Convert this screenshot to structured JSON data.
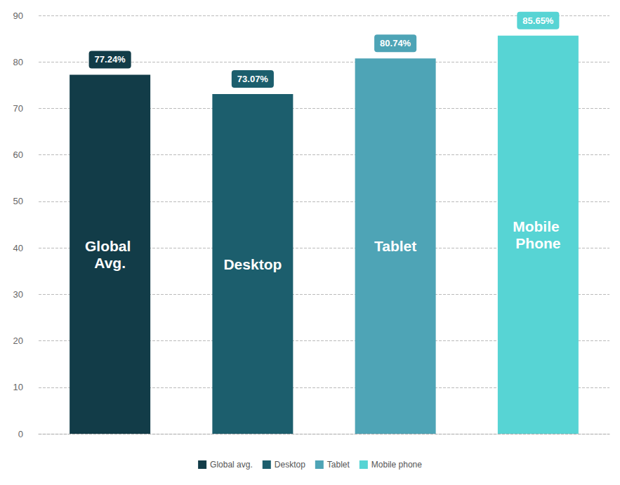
{
  "chart_data": {
    "type": "bar",
    "categories": [
      "Global avg.",
      "Desktop",
      "Tablet",
      "Mobile phone"
    ],
    "values": [
      77.24,
      73.07,
      80.74,
      85.65
    ],
    "value_labels": [
      "77.24%",
      "73.07%",
      "80.74%",
      "85.65%"
    ],
    "annotations": [
      "Global Avg.",
      "Desktop",
      "Tablet",
      "Mobile Phone"
    ],
    "colors": [
      "#123c48",
      "#1c5e6d",
      "#4ea4b6",
      "#57d4d4"
    ],
    "ylim": [
      0,
      90
    ],
    "yticks": [
      0,
      10,
      20,
      30,
      40,
      50,
      60,
      70,
      80,
      90
    ],
    "grid": true,
    "data_labels": true,
    "tick_labels": "y",
    "legend": "bottom"
  }
}
